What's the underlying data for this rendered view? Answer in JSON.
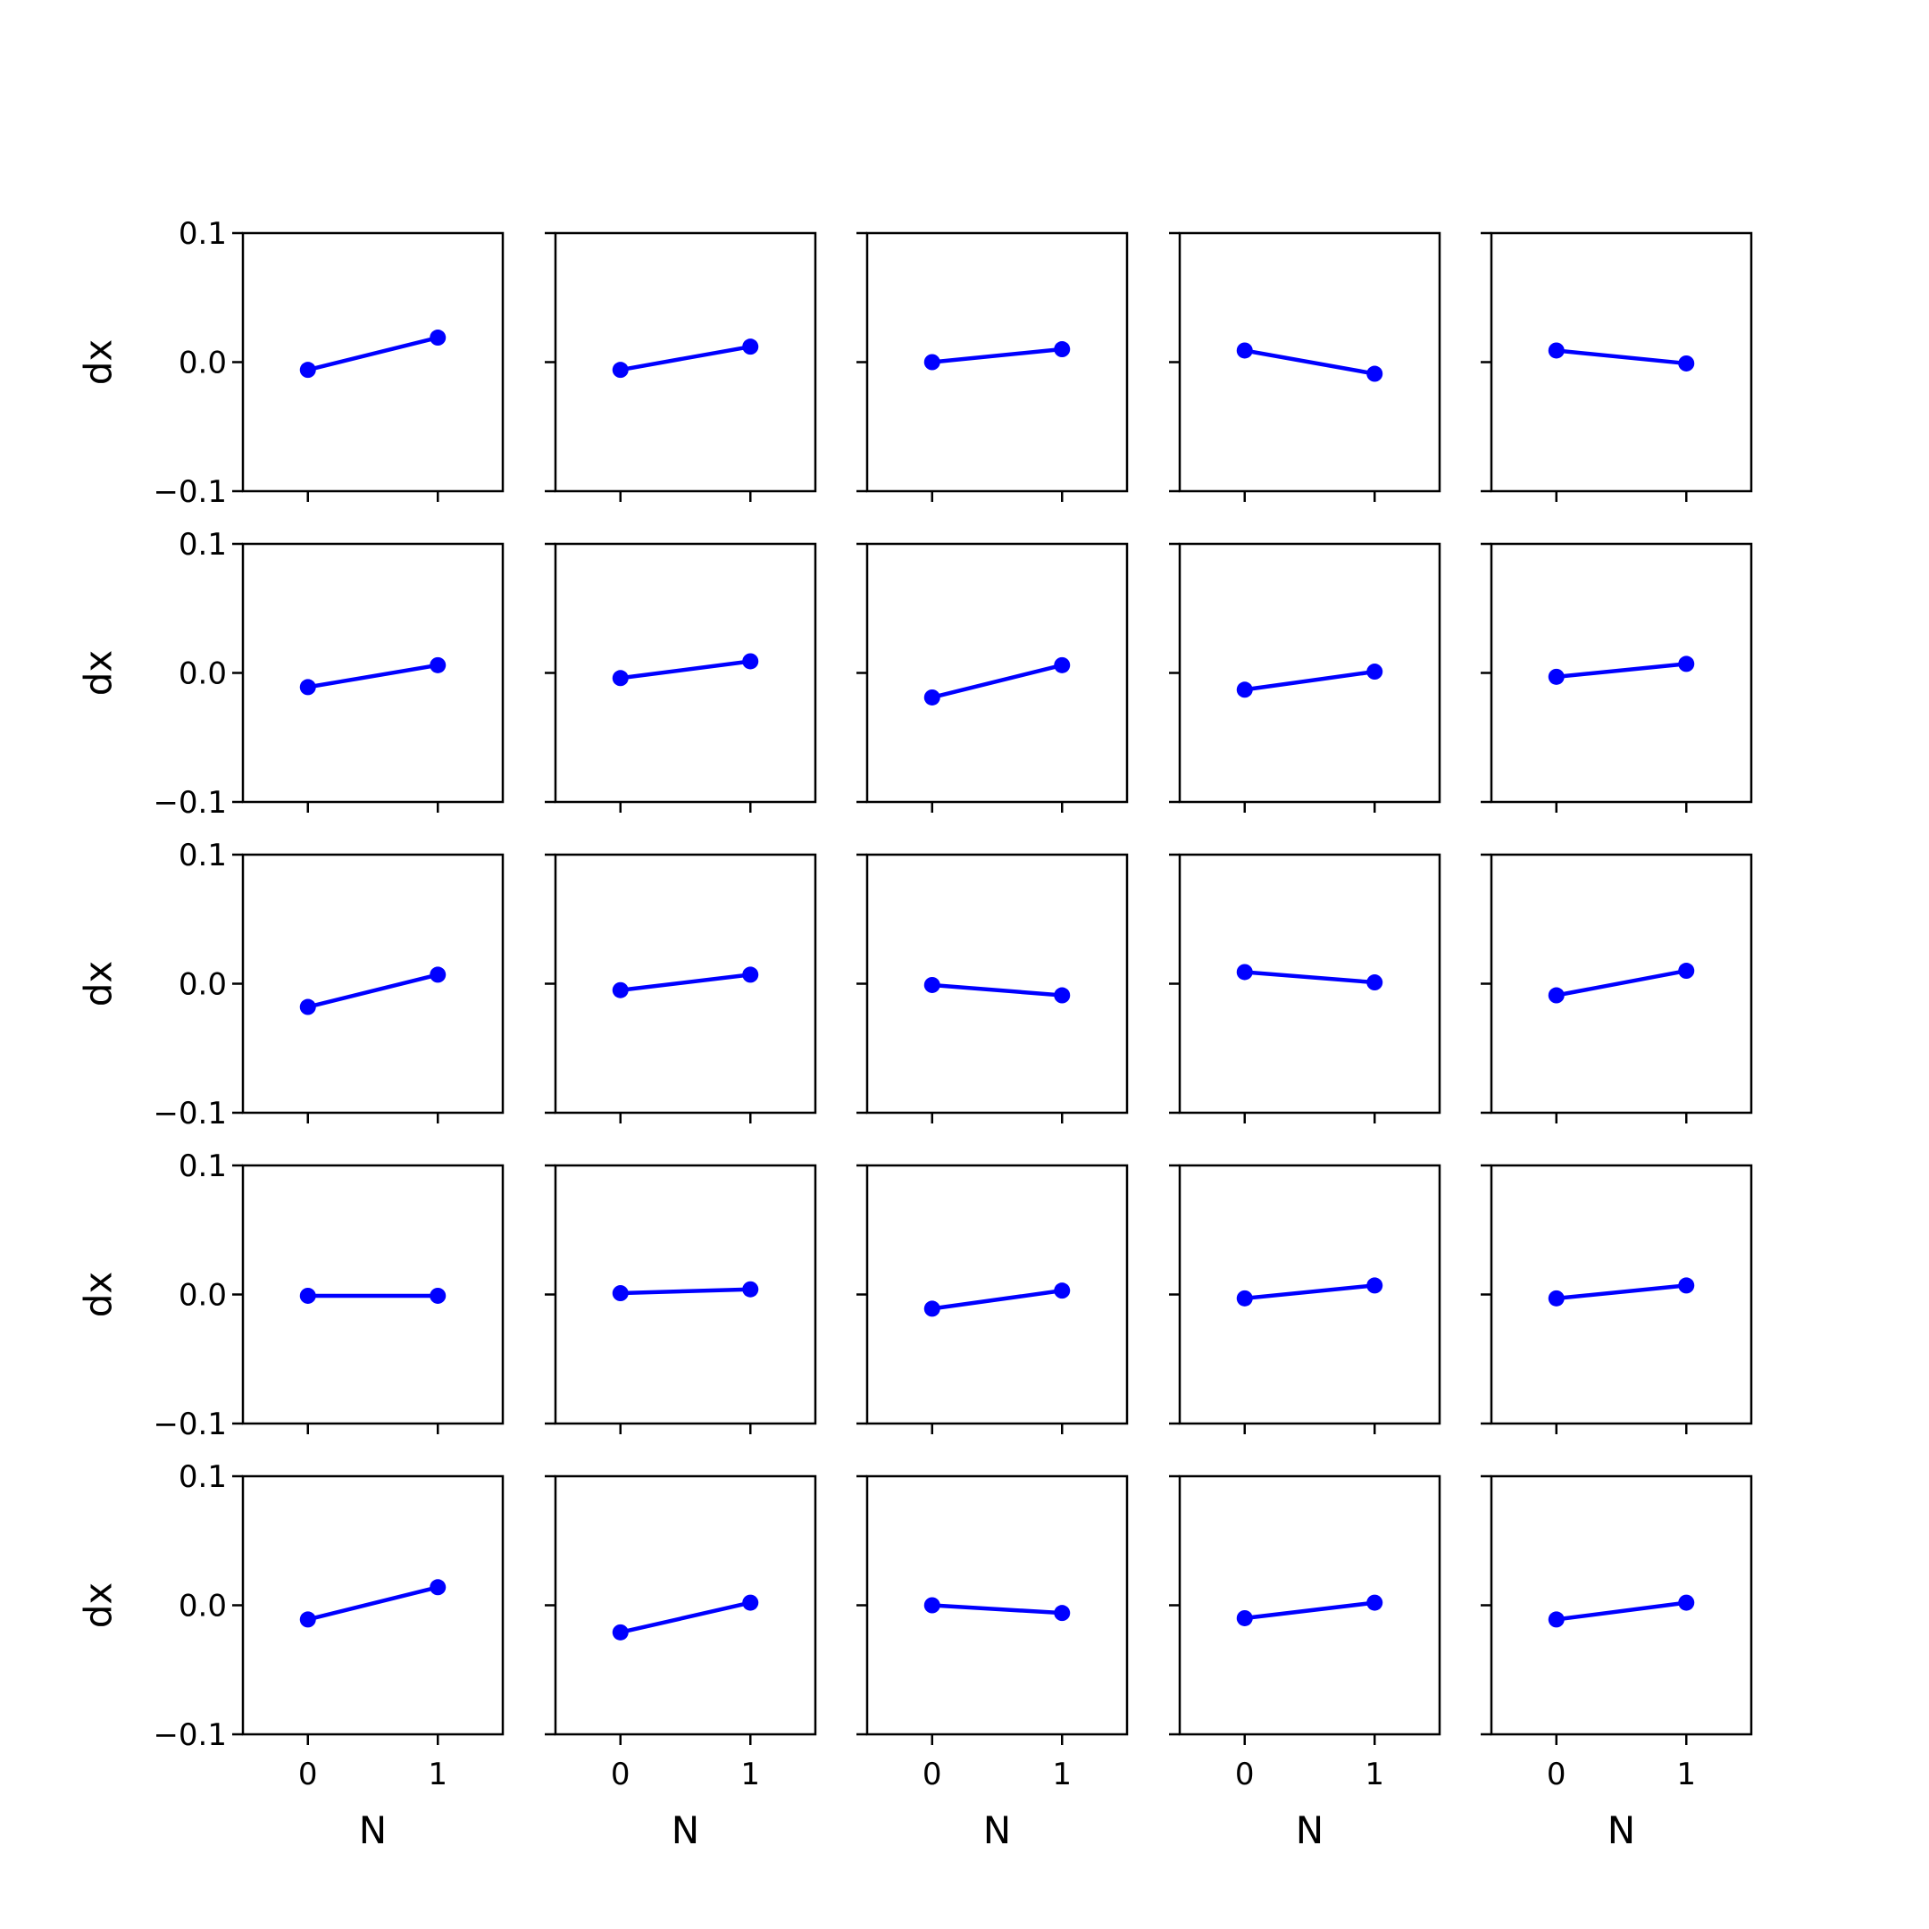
{
  "chart_data": {
    "type": "line",
    "layout": "5x5 grid of small multiples, shared axes",
    "grid": false,
    "line_color": "#0000ff",
    "xlabel": "N",
    "ylabel": "dx",
    "xticks": [
      "0",
      "1"
    ],
    "yticks": [
      "−0.1",
      "0.0",
      "0.1"
    ],
    "xlim": [
      -0.5,
      1.5
    ],
    "ylim": [
      -0.1,
      0.1
    ],
    "x": [
      0,
      1
    ],
    "panels": [
      [
        [
          -0.006,
          0.019
        ],
        [
          -0.006,
          0.012
        ],
        [
          0.0,
          0.01
        ],
        [
          0.009,
          -0.009
        ],
        [
          0.009,
          -0.001
        ]
      ],
      [
        [
          -0.011,
          0.006
        ],
        [
          -0.004,
          0.009
        ],
        [
          -0.019,
          0.006
        ],
        [
          -0.013,
          0.001
        ],
        [
          -0.003,
          0.007
        ]
      ],
      [
        [
          -0.018,
          0.007
        ],
        [
          -0.005,
          0.007
        ],
        [
          -0.001,
          -0.009
        ],
        [
          0.009,
          0.001
        ],
        [
          -0.009,
          0.01
        ]
      ],
      [
        [
          -0.001,
          -0.001
        ],
        [
          0.001,
          0.004
        ],
        [
          -0.011,
          0.003
        ],
        [
          -0.003,
          0.007
        ],
        [
          -0.003,
          0.007
        ]
      ],
      [
        [
          -0.011,
          0.014
        ],
        [
          -0.021,
          0.002
        ],
        [
          0.0,
          -0.006
        ],
        [
          -0.01,
          0.002
        ],
        [
          -0.011,
          0.002
        ]
      ]
    ]
  }
}
